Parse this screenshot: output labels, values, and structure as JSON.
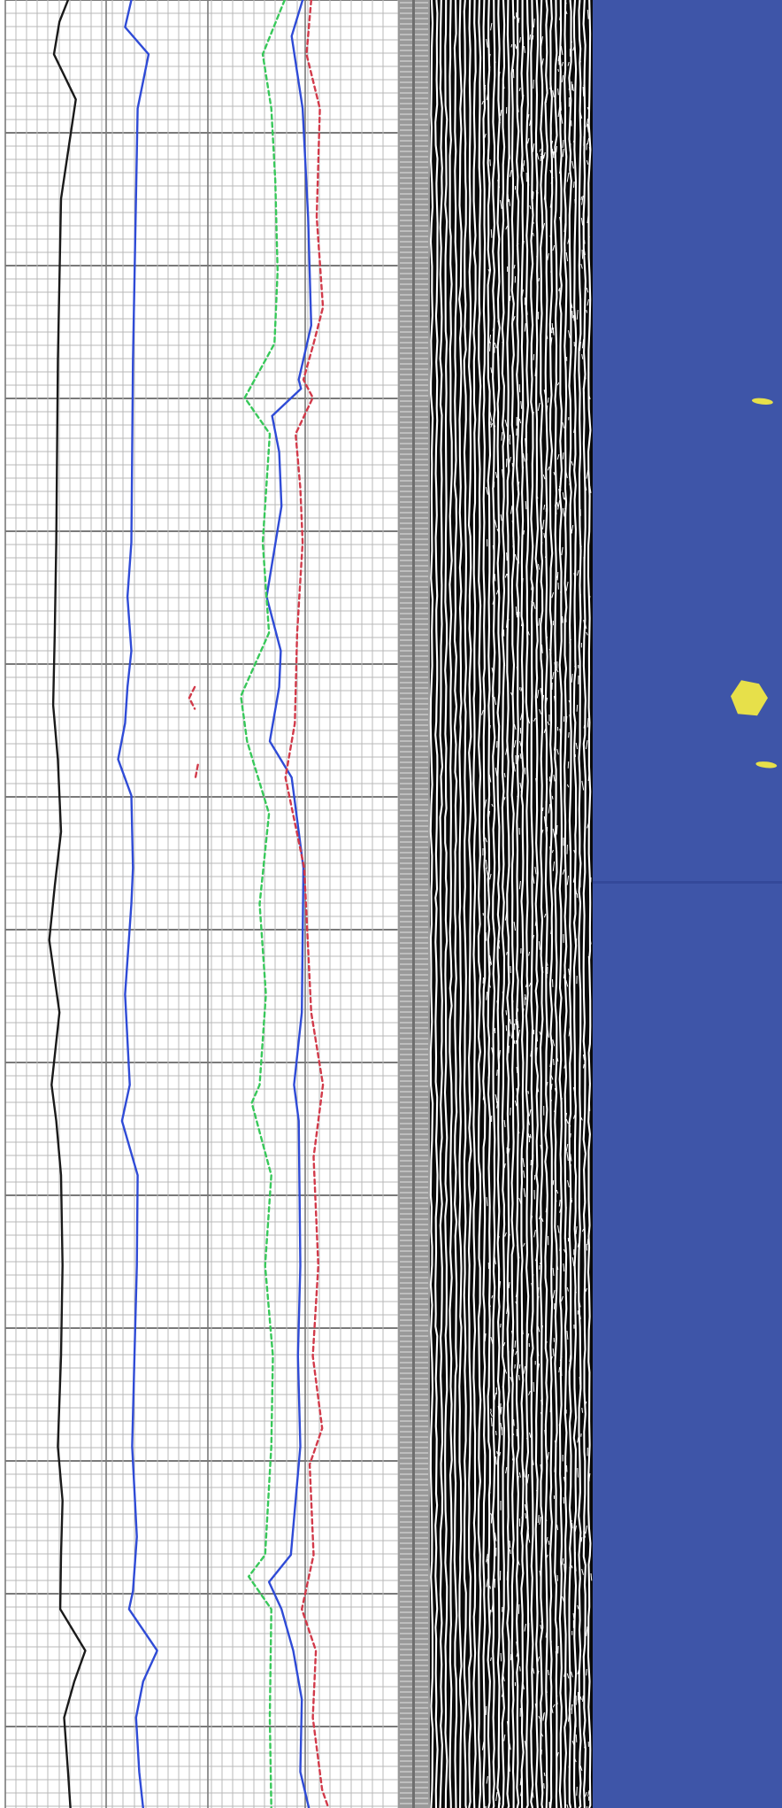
{
  "colors": {
    "background": "#ffffff",
    "grid_minor": "#b9b9b9",
    "grid_major": "#7a7a7a",
    "depth_strip": "#9a9a9a",
    "wiggle_light": "#ffffff",
    "wiggle_dark": "#0a0a0a",
    "image_track": "#3e55a8",
    "anomaly": "#e7e04a",
    "curve_1": "#1a1a1a",
    "curve_2": "#2f4bd6",
    "curve_3": "#2f4bd6",
    "curve_4_dashed": "#38c85a",
    "curve_5_dashed": "#d23a4a"
  },
  "chart_data": {
    "type": "line",
    "title": "",
    "xlabel": "",
    "ylabel": "",
    "grid": true,
    "legend": "none",
    "y_range": [
      0,
      1
    ],
    "x_range": [
      0,
      1
    ],
    "series": [
      {
        "line_style": "solid",
        "color_key": "curve_1",
        "points": [
          [
            0.087,
            0.0
          ],
          [
            0.076,
            0.012
          ],
          [
            0.069,
            0.03
          ],
          [
            0.097,
            0.055
          ],
          [
            0.078,
            0.11
          ],
          [
            0.074,
            0.2
          ],
          [
            0.072,
            0.3
          ],
          [
            0.07,
            0.35
          ],
          [
            0.068,
            0.39
          ],
          [
            0.074,
            0.42
          ],
          [
            0.078,
            0.46
          ],
          [
            0.07,
            0.49
          ],
          [
            0.063,
            0.52
          ],
          [
            0.076,
            0.56
          ],
          [
            0.066,
            0.6
          ],
          [
            0.072,
            0.62
          ],
          [
            0.078,
            0.65
          ],
          [
            0.08,
            0.7
          ],
          [
            0.078,
            0.75
          ],
          [
            0.074,
            0.8
          ],
          [
            0.08,
            0.83
          ],
          [
            0.078,
            0.86
          ],
          [
            0.077,
            0.89
          ],
          [
            0.109,
            0.913
          ],
          [
            0.095,
            0.93
          ],
          [
            0.082,
            0.95
          ],
          [
            0.087,
            0.98
          ],
          [
            0.09,
            1.0
          ]
        ]
      },
      {
        "line_style": "solid",
        "color_key": "curve_2",
        "points": [
          [
            0.168,
            0.0
          ],
          [
            0.16,
            0.015
          ],
          [
            0.19,
            0.03
          ],
          [
            0.176,
            0.06
          ],
          [
            0.17,
            0.2
          ],
          [
            0.168,
            0.3
          ],
          [
            0.163,
            0.33
          ],
          [
            0.168,
            0.36
          ],
          [
            0.163,
            0.38
          ],
          [
            0.16,
            0.4
          ],
          [
            0.151,
            0.42
          ],
          [
            0.168,
            0.44
          ],
          [
            0.17,
            0.48
          ],
          [
            0.168,
            0.5
          ],
          [
            0.16,
            0.55
          ],
          [
            0.166,
            0.6
          ],
          [
            0.156,
            0.62
          ],
          [
            0.176,
            0.65
          ],
          [
            0.175,
            0.7
          ],
          [
            0.172,
            0.75
          ],
          [
            0.169,
            0.8
          ],
          [
            0.175,
            0.85
          ],
          [
            0.17,
            0.88
          ],
          [
            0.165,
            0.89
          ],
          [
            0.201,
            0.913
          ],
          [
            0.183,
            0.93
          ],
          [
            0.174,
            0.95
          ],
          [
            0.178,
            0.98
          ],
          [
            0.183,
            1.0
          ]
        ]
      },
      {
        "line_style": "solid",
        "color_key": "curve_3",
        "points": [
          [
            0.387,
            0.0
          ],
          [
            0.373,
            0.02
          ],
          [
            0.387,
            0.06
          ],
          [
            0.394,
            0.12
          ],
          [
            0.398,
            0.18
          ],
          [
            0.382,
            0.21
          ],
          [
            0.385,
            0.215
          ],
          [
            0.348,
            0.23
          ],
          [
            0.357,
            0.25
          ],
          [
            0.36,
            0.28
          ],
          [
            0.341,
            0.33
          ],
          [
            0.359,
            0.36
          ],
          [
            0.357,
            0.38
          ],
          [
            0.345,
            0.41
          ],
          [
            0.373,
            0.43
          ],
          [
            0.388,
            0.48
          ],
          [
            0.386,
            0.56
          ],
          [
            0.376,
            0.6
          ],
          [
            0.382,
            0.62
          ],
          [
            0.384,
            0.7
          ],
          [
            0.381,
            0.75
          ],
          [
            0.384,
            0.8
          ],
          [
            0.372,
            0.86
          ],
          [
            0.344,
            0.875
          ],
          [
            0.36,
            0.89
          ],
          [
            0.375,
            0.913
          ],
          [
            0.386,
            0.94
          ],
          [
            0.384,
            0.98
          ],
          [
            0.395,
            1.0
          ]
        ]
      },
      {
        "line_style": "dashed",
        "color_key": "curve_4_dashed",
        "points": [
          [
            0.364,
            0.0
          ],
          [
            0.336,
            0.03
          ],
          [
            0.347,
            0.06
          ],
          [
            0.352,
            0.1
          ],
          [
            0.355,
            0.15
          ],
          [
            0.351,
            0.19
          ],
          [
            0.313,
            0.22
          ],
          [
            0.345,
            0.24
          ],
          [
            0.336,
            0.3
          ],
          [
            0.344,
            0.35
          ],
          [
            0.308,
            0.385
          ],
          [
            0.316,
            0.41
          ],
          [
            0.344,
            0.45
          ],
          [
            0.332,
            0.5
          ],
          [
            0.34,
            0.55
          ],
          [
            0.332,
            0.6
          ],
          [
            0.322,
            0.61
          ],
          [
            0.347,
            0.65
          ],
          [
            0.339,
            0.7
          ],
          [
            0.349,
            0.75
          ],
          [
            0.347,
            0.8
          ],
          [
            0.339,
            0.86
          ],
          [
            0.318,
            0.872
          ],
          [
            0.347,
            0.89
          ],
          [
            0.345,
            0.95
          ],
          [
            0.347,
            1.0
          ]
        ]
      },
      {
        "line_style": "dashed",
        "color_key": "curve_5_dashed",
        "points": [
          [
            0.398,
            0.0
          ],
          [
            0.392,
            0.03
          ],
          [
            0.409,
            0.06
          ],
          [
            0.405,
            0.12
          ],
          [
            0.413,
            0.17
          ],
          [
            0.401,
            0.19
          ],
          [
            0.388,
            0.21
          ],
          [
            0.4,
            0.22
          ],
          [
            0.378,
            0.24
          ],
          [
            0.384,
            0.27
          ],
          [
            0.387,
            0.3
          ],
          [
            0.38,
            0.35
          ],
          [
            0.377,
            0.4
          ],
          [
            0.365,
            0.43
          ],
          [
            0.389,
            0.48
          ],
          [
            0.398,
            0.56
          ],
          [
            0.413,
            0.6
          ],
          [
            0.401,
            0.64
          ],
          [
            0.407,
            0.7
          ],
          [
            0.4,
            0.75
          ],
          [
            0.412,
            0.79
          ],
          [
            0.396,
            0.81
          ],
          [
            0.401,
            0.86
          ],
          [
            0.386,
            0.89
          ],
          [
            0.404,
            0.913
          ],
          [
            0.4,
            0.95
          ],
          [
            0.412,
            0.99
          ],
          [
            0.42,
            1.0
          ]
        ]
      },
      {
        "line_style": "dashed",
        "color_key": "curve_5_dashed",
        "points": [
          [
            0.249,
            0.38
          ],
          [
            0.242,
            0.386
          ],
          [
            0.249,
            0.392
          ]
        ]
      },
      {
        "line_style": "dashed",
        "color_key": "curve_5_dashed",
        "points": [
          [
            0.253,
            0.423
          ],
          [
            0.25,
            0.43
          ]
        ]
      }
    ],
    "image_track_anomalies": [
      {
        "shape": "dash",
        "x": 0.975,
        "y": 0.222
      },
      {
        "shape": "blob",
        "x": 0.957,
        "y": 0.387
      },
      {
        "shape": "dash",
        "x": 0.98,
        "y": 0.423
      }
    ]
  }
}
